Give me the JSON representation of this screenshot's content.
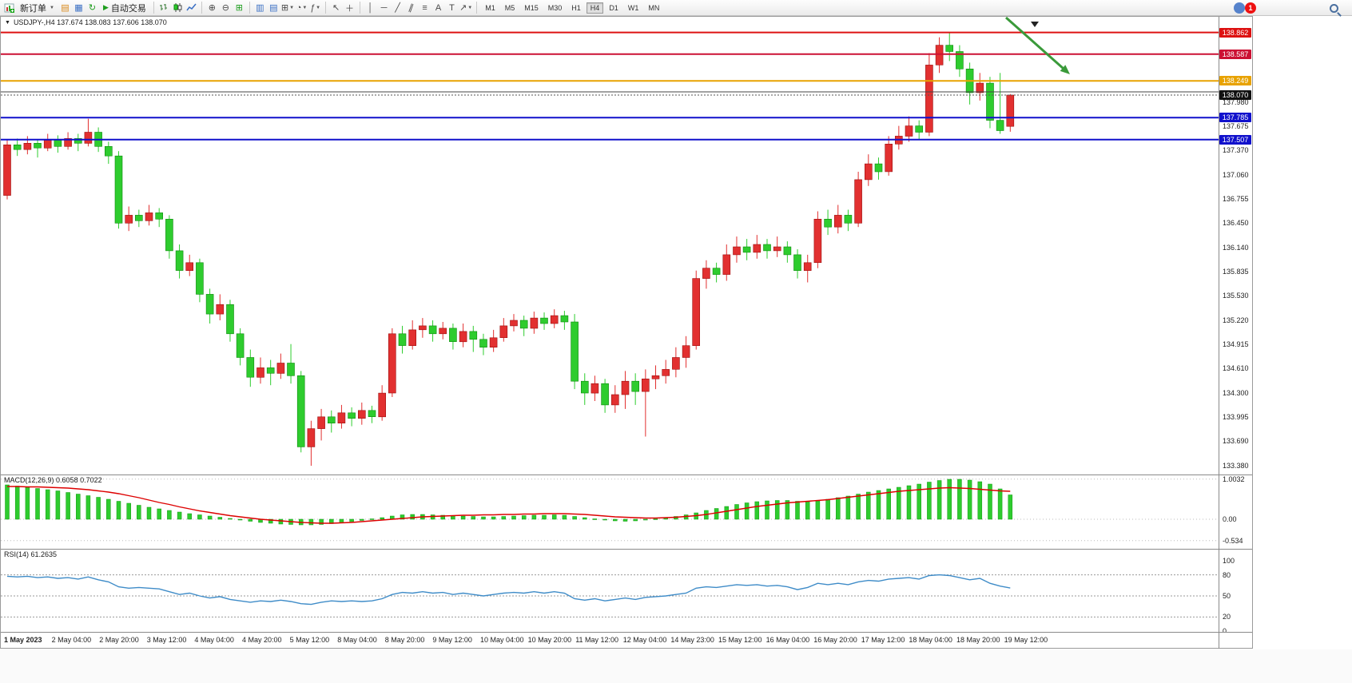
{
  "toolbar": {
    "new_order": "新订单",
    "autotrading": "自动交易",
    "timeframes": [
      "M1",
      "M5",
      "M15",
      "M30",
      "H1",
      "H4",
      "D1",
      "W1",
      "MN"
    ],
    "active_timeframe": "H4",
    "notification_badge": "1",
    "text_tool": "A",
    "label_tool": "T"
  },
  "chart_header": {
    "title": "USDJPY-,H4 137.674 138.083 137.606 138.070"
  },
  "indicators": {
    "macd": {
      "name": "MACD(12,26,9)",
      "values": "0.6058 0.7022"
    },
    "rsi": {
      "name": "RSI(14)",
      "value": "61.2635"
    }
  },
  "colors": {
    "bull": "#e23030",
    "bull_border": "#9c0e0e",
    "bear": "#2ecc2e",
    "bear_border": "#0e8a0e",
    "macd_hist": "#2ecc2e",
    "macd_hist_border": "#119911",
    "macd_signal": "#dd0000",
    "rsi_line": "#3f8cc8",
    "arrow": "#3a9a3a"
  },
  "chart_data": {
    "type": "candlestick",
    "symbol": "USDJPY-",
    "timeframe": "H4",
    "ohlc_current": {
      "open": 137.674,
      "high": 138.083,
      "low": 137.606,
      "close": 138.07
    },
    "ylim": [
      133.27,
      139.06
    ],
    "price_ticks": [
      "137.980",
      "137.675",
      "137.370",
      "137.060",
      "136.755",
      "136.450",
      "136.140",
      "135.835",
      "135.530",
      "135.220",
      "134.915",
      "134.610",
      "134.300",
      "133.995",
      "133.690",
      "133.380"
    ],
    "hlines": [
      {
        "price": 138.862,
        "label": "138.862",
        "color": "#dd1111",
        "width": 2
      },
      {
        "price": 138.587,
        "label": "138.587",
        "color": "#cc1133",
        "width": 2
      },
      {
        "price": 138.249,
        "label": "138.249",
        "color": "#e8a200",
        "width": 2
      },
      {
        "price": 138.11,
        "label": "",
        "color": "#444444",
        "width": 1
      },
      {
        "price": 137.785,
        "label": "137.785",
        "color": "#1111cc",
        "width": 2
      },
      {
        "price": 137.507,
        "label": "137.507",
        "color": "#1111cc",
        "width": 2
      }
    ],
    "current_price": {
      "value": 138.07,
      "label": "138.070",
      "tag_color": "#111111"
    },
    "annotation_arrow": {
      "shape": "down-right-arrow",
      "color": "#3a9a3a"
    },
    "time_labels": [
      "1 May 2023",
      "2 May 04:00",
      "2 May 20:00",
      "3 May 12:00",
      "4 May 04:00",
      "4 May 20:00",
      "5 May 12:00",
      "8 May 04:00",
      "8 May 20:00",
      "9 May 12:00",
      "10 May 04:00",
      "10 May 20:00",
      "11 May 12:00",
      "12 May 04:00",
      "14 May 23:00",
      "15 May 12:00",
      "16 May 04:00",
      "16 May 20:00",
      "17 May 12:00",
      "18 May 04:00",
      "18 May 20:00",
      "19 May 12:00"
    ],
    "candles": [
      [
        136.8,
        137.5,
        136.75,
        137.44
      ],
      [
        137.44,
        137.52,
        137.3,
        137.38
      ],
      [
        137.38,
        137.55,
        137.32,
        137.46
      ],
      [
        137.46,
        137.5,
        137.28,
        137.4
      ],
      [
        137.4,
        137.58,
        137.36,
        137.5
      ],
      [
        137.5,
        137.56,
        137.34,
        137.42
      ],
      [
        137.42,
        137.6,
        137.38,
        137.52
      ],
      [
        137.52,
        137.58,
        137.36,
        137.46
      ],
      [
        137.46,
        137.77,
        137.42,
        137.6
      ],
      [
        137.6,
        137.66,
        137.35,
        137.42
      ],
      [
        137.42,
        137.48,
        137.2,
        137.3
      ],
      [
        137.3,
        137.36,
        136.38,
        136.45
      ],
      [
        136.45,
        136.66,
        136.35,
        136.55
      ],
      [
        136.55,
        136.62,
        136.4,
        136.48
      ],
      [
        136.48,
        136.68,
        136.42,
        136.58
      ],
      [
        136.58,
        136.64,
        136.4,
        136.5
      ],
      [
        136.5,
        136.55,
        136.0,
        136.1
      ],
      [
        136.1,
        136.18,
        135.75,
        135.85
      ],
      [
        135.85,
        136.05,
        135.78,
        135.95
      ],
      [
        135.95,
        136.0,
        135.45,
        135.55
      ],
      [
        135.55,
        135.62,
        135.18,
        135.3
      ],
      [
        135.3,
        135.55,
        135.22,
        135.42
      ],
      [
        135.42,
        135.48,
        134.95,
        135.05
      ],
      [
        135.05,
        135.12,
        134.65,
        134.75
      ],
      [
        134.75,
        134.85,
        134.38,
        134.5
      ],
      [
        134.5,
        134.75,
        134.42,
        134.62
      ],
      [
        134.62,
        134.72,
        134.4,
        134.55
      ],
      [
        134.55,
        134.8,
        134.48,
        134.68
      ],
      [
        134.68,
        134.92,
        134.42,
        134.52
      ],
      [
        134.52,
        134.58,
        133.55,
        133.62
      ],
      [
        133.62,
        133.95,
        133.38,
        133.85
      ],
      [
        133.85,
        134.1,
        133.7,
        134.0
      ],
      [
        134.0,
        134.08,
        133.8,
        133.92
      ],
      [
        133.92,
        134.15,
        133.85,
        134.05
      ],
      [
        134.05,
        134.12,
        133.88,
        133.98
      ],
      [
        133.98,
        134.18,
        133.9,
        134.08
      ],
      [
        134.08,
        134.14,
        133.92,
        134.0
      ],
      [
        134.0,
        134.4,
        133.95,
        134.3
      ],
      [
        134.3,
        135.12,
        134.25,
        135.05
      ],
      [
        135.05,
        135.15,
        134.8,
        134.9
      ],
      [
        134.9,
        135.22,
        134.85,
        135.1
      ],
      [
        135.1,
        135.25,
        135.0,
        135.15
      ],
      [
        135.15,
        135.22,
        134.95,
        135.05
      ],
      [
        135.05,
        135.2,
        134.98,
        135.12
      ],
      [
        135.12,
        135.18,
        134.85,
        134.95
      ],
      [
        134.95,
        135.18,
        134.88,
        135.08
      ],
      [
        135.08,
        135.15,
        134.82,
        134.98
      ],
      [
        134.98,
        135.05,
        134.78,
        134.88
      ],
      [
        134.88,
        135.1,
        134.82,
        135.0
      ],
      [
        135.0,
        135.25,
        134.95,
        135.15
      ],
      [
        135.15,
        135.3,
        135.08,
        135.22
      ],
      [
        135.22,
        135.28,
        135.02,
        135.12
      ],
      [
        135.12,
        135.33,
        135.05,
        135.25
      ],
      [
        135.25,
        135.32,
        135.1,
        135.18
      ],
      [
        135.18,
        135.36,
        135.12,
        135.28
      ],
      [
        135.28,
        135.34,
        135.1,
        135.2
      ],
      [
        135.2,
        135.3,
        134.35,
        134.45
      ],
      [
        134.45,
        134.55,
        134.15,
        134.3
      ],
      [
        134.3,
        134.52,
        134.2,
        134.42
      ],
      [
        134.42,
        134.48,
        134.05,
        134.15
      ],
      [
        134.15,
        134.4,
        134.05,
        134.28
      ],
      [
        134.28,
        134.58,
        134.1,
        134.45
      ],
      [
        134.45,
        134.55,
        134.15,
        134.32
      ],
      [
        134.32,
        134.6,
        133.75,
        134.48
      ],
      [
        134.48,
        134.65,
        134.35,
        134.52
      ],
      [
        134.52,
        134.72,
        134.42,
        134.6
      ],
      [
        134.6,
        134.88,
        134.5,
        134.75
      ],
      [
        134.75,
        135.02,
        134.62,
        134.9
      ],
      [
        134.9,
        135.85,
        134.85,
        135.75
      ],
      [
        135.75,
        135.98,
        135.62,
        135.88
      ],
      [
        135.88,
        135.95,
        135.7,
        135.8
      ],
      [
        135.8,
        136.18,
        135.72,
        136.05
      ],
      [
        136.05,
        136.28,
        135.95,
        136.15
      ],
      [
        136.15,
        136.25,
        135.98,
        136.08
      ],
      [
        136.08,
        136.3,
        136.0,
        136.18
      ],
      [
        136.18,
        136.25,
        136.0,
        136.1
      ],
      [
        136.1,
        136.28,
        136.02,
        136.15
      ],
      [
        136.15,
        136.22,
        135.95,
        136.05
      ],
      [
        136.05,
        136.12,
        135.75,
        135.85
      ],
      [
        135.85,
        136.05,
        135.7,
        135.95
      ],
      [
        135.95,
        136.6,
        135.88,
        136.5
      ],
      [
        136.5,
        136.62,
        136.3,
        136.4
      ],
      [
        136.4,
        136.68,
        136.32,
        136.55
      ],
      [
        136.55,
        136.62,
        136.35,
        136.45
      ],
      [
        136.45,
        137.1,
        136.4,
        137.0
      ],
      [
        137.0,
        137.32,
        136.92,
        137.2
      ],
      [
        137.2,
        137.28,
        137.0,
        137.1
      ],
      [
        137.1,
        137.55,
        137.05,
        137.45
      ],
      [
        137.45,
        137.68,
        137.38,
        137.55
      ],
      [
        137.55,
        137.8,
        137.48,
        137.68
      ],
      [
        137.68,
        137.75,
        137.5,
        137.6
      ],
      [
        137.6,
        138.6,
        137.55,
        138.45
      ],
      [
        138.45,
        138.8,
        138.35,
        138.7
      ],
      [
        138.7,
        138.86,
        138.5,
        138.62
      ],
      [
        138.62,
        138.7,
        138.3,
        138.4
      ],
      [
        138.4,
        138.48,
        137.95,
        138.1
      ],
      [
        138.1,
        138.35,
        138.0,
        138.22
      ],
      [
        138.22,
        138.3,
        137.65,
        137.75
      ],
      [
        137.75,
        138.35,
        137.58,
        137.62
      ],
      [
        137.674,
        138.083,
        137.606,
        138.07
      ]
    ],
    "macd": {
      "ylim": [
        -0.534,
        1.0032
      ],
      "ticks": [
        "1.0032",
        "0.00",
        "-0.534"
      ],
      "histogram": [
        0.86,
        0.83,
        0.8,
        0.77,
        0.74,
        0.71,
        0.67,
        0.63,
        0.59,
        0.55,
        0.5,
        0.45,
        0.4,
        0.35,
        0.3,
        0.26,
        0.22,
        0.18,
        0.14,
        0.11,
        0.08,
        0.05,
        0.02,
        -0.02,
        -0.05,
        -0.08,
        -0.1,
        -0.12,
        -0.13,
        -0.14,
        -0.14,
        -0.13,
        -0.11,
        -0.09,
        -0.06,
        -0.03,
        0.01,
        0.04,
        0.08,
        0.11,
        0.12,
        0.12,
        0.11,
        0.1,
        0.09,
        0.08,
        0.07,
        0.06,
        0.06,
        0.07,
        0.08,
        0.09,
        0.1,
        0.1,
        0.11,
        0.1,
        0.07,
        0.04,
        0.01,
        -0.02,
        -0.04,
        -0.05,
        -0.04,
        -0.02,
        0.01,
        0.04,
        0.07,
        0.11,
        0.16,
        0.22,
        0.27,
        0.32,
        0.37,
        0.41,
        0.44,
        0.46,
        0.47,
        0.47,
        0.45,
        0.44,
        0.46,
        0.5,
        0.54,
        0.58,
        0.63,
        0.68,
        0.72,
        0.76,
        0.8,
        0.84,
        0.88,
        0.93,
        0.97,
        1.0,
        1.0,
        0.98,
        0.94,
        0.88,
        0.76,
        0.61
      ],
      "signal": [
        0.82,
        0.82,
        0.81,
        0.81,
        0.8,
        0.79,
        0.78,
        0.76,
        0.74,
        0.71,
        0.68,
        0.64,
        0.59,
        0.54,
        0.48,
        0.42,
        0.37,
        0.31,
        0.26,
        0.21,
        0.17,
        0.13,
        0.09,
        0.06,
        0.03,
        0.0,
        -0.02,
        -0.04,
        -0.06,
        -0.08,
        -0.09,
        -0.1,
        -0.1,
        -0.09,
        -0.08,
        -0.06,
        -0.04,
        -0.02,
        0.0,
        0.02,
        0.04,
        0.06,
        0.07,
        0.08,
        0.09,
        0.1,
        0.1,
        0.11,
        0.11,
        0.12,
        0.12,
        0.13,
        0.13,
        0.14,
        0.14,
        0.14,
        0.13,
        0.12,
        0.1,
        0.08,
        0.06,
        0.05,
        0.04,
        0.03,
        0.03,
        0.04,
        0.05,
        0.07,
        0.09,
        0.12,
        0.16,
        0.2,
        0.24,
        0.28,
        0.32,
        0.35,
        0.38,
        0.41,
        0.43,
        0.45,
        0.47,
        0.49,
        0.52,
        0.55,
        0.58,
        0.61,
        0.64,
        0.67,
        0.7,
        0.72,
        0.74,
        0.76,
        0.78,
        0.79,
        0.78,
        0.77,
        0.75,
        0.73,
        0.71,
        0.7
      ]
    },
    "rsi": {
      "ylim": [
        0,
        100
      ],
      "ticks": [
        "100",
        "80",
        "50",
        "20",
        "0"
      ],
      "levels": [
        80,
        50,
        20
      ],
      "values": [
        78,
        77,
        78,
        76,
        77,
        75,
        76,
        74,
        77,
        73,
        70,
        63,
        61,
        62,
        61,
        60,
        56,
        52,
        54,
        50,
        47,
        49,
        45,
        43,
        41,
        43,
        42,
        44,
        42,
        39,
        38,
        41,
        43,
        42,
        43,
        42,
        43,
        46,
        52,
        55,
        54,
        56,
        54,
        55,
        52,
        54,
        52,
        50,
        52,
        54,
        55,
        54,
        56,
        54,
        56,
        54,
        46,
        44,
        46,
        43,
        45,
        47,
        45,
        48,
        49,
        50,
        52,
        54,
        61,
        63,
        62,
        64,
        66,
        65,
        66,
        64,
        65,
        63,
        59,
        62,
        68,
        66,
        68,
        66,
        70,
        72,
        71,
        74,
        75,
        76,
        74,
        79,
        80,
        79,
        76,
        73,
        75,
        68,
        64,
        61.26
      ]
    }
  }
}
